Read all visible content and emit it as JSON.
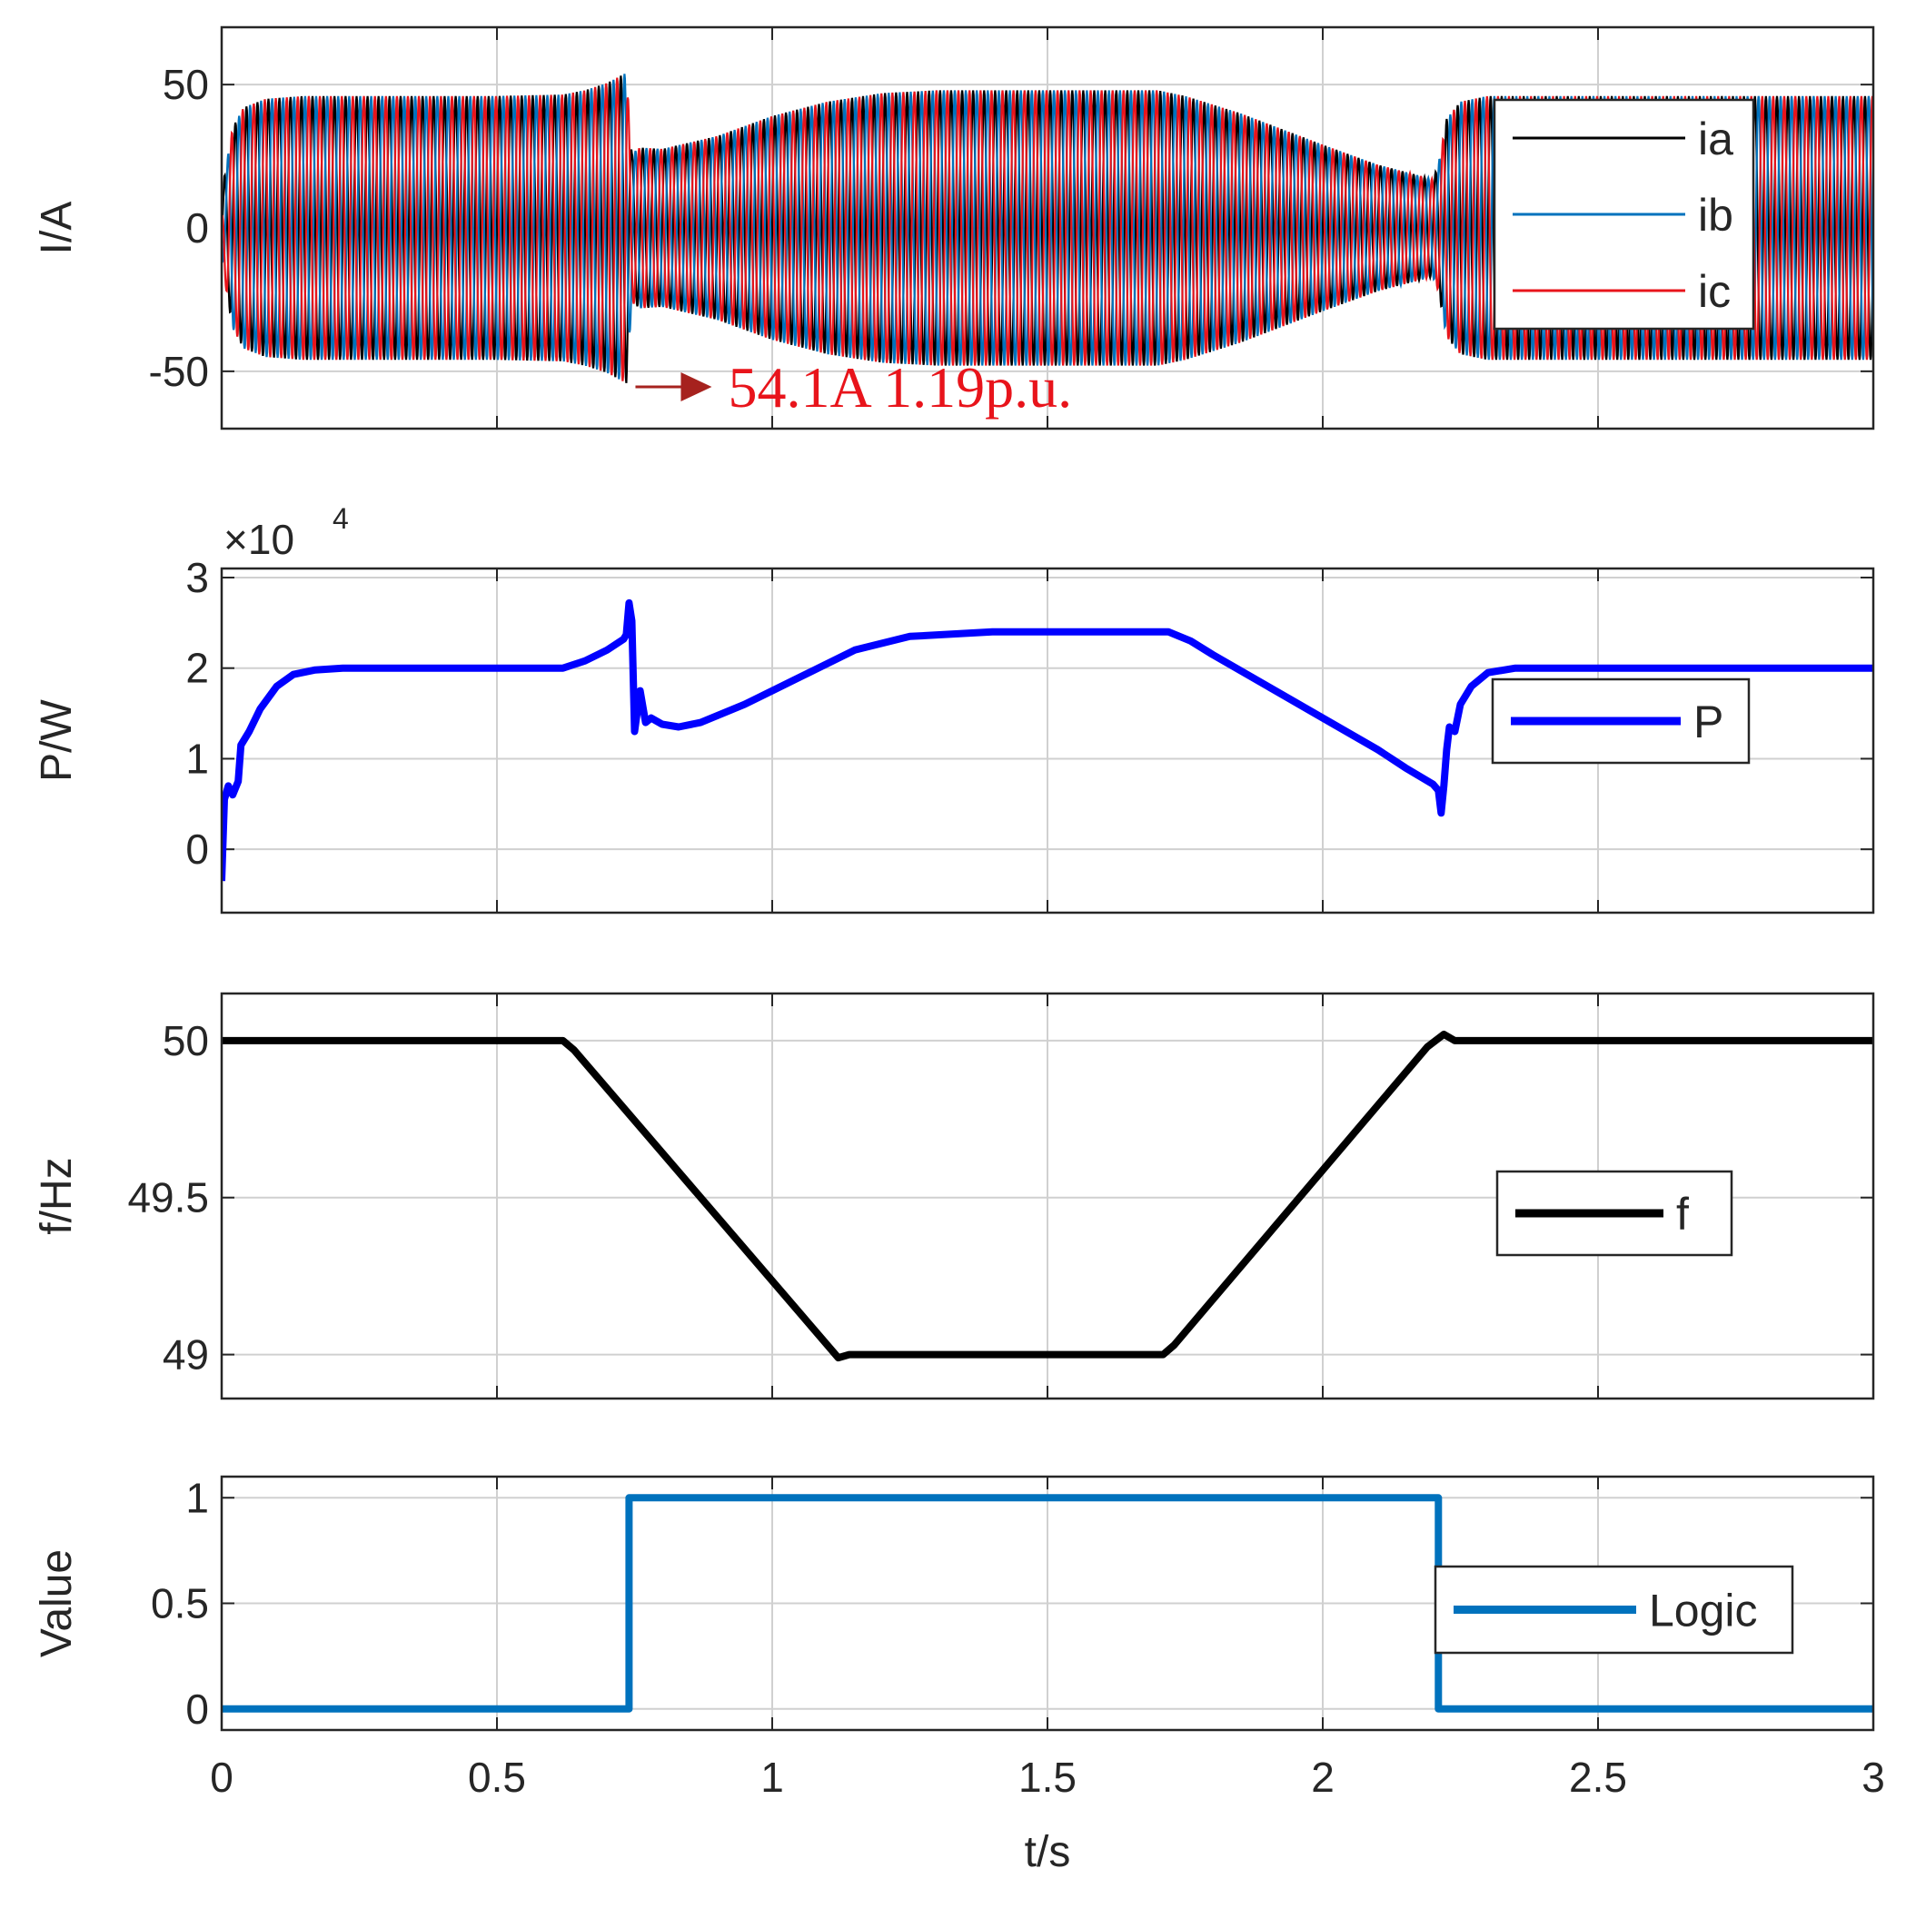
{
  "chart_data": [
    {
      "type": "line",
      "ylabel": "I/A",
      "ylim": [
        -70,
        70
      ],
      "yticks": [
        -50,
        0,
        50
      ],
      "xlim": [
        0,
        3
      ],
      "grid": true,
      "legend_position": "top-right",
      "envelope_note": "three-phase 50 Hz currents; each series oscillates within ±amplitude",
      "amplitude": {
        "t": [
          0,
          0.005,
          0.02,
          0.04,
          0.08,
          0.15,
          0.3,
          0.5,
          0.62,
          0.66,
          0.7,
          0.735,
          0.745,
          0.76,
          0.8,
          0.9,
          1.0,
          1.1,
          1.2,
          1.3,
          1.5,
          1.7,
          1.75,
          1.85,
          2.0,
          2.1,
          2.2,
          2.21,
          2.225,
          2.25,
          2.3,
          2.4,
          2.6,
          3.0
        ],
        "value": [
          3,
          18,
          35,
          42,
          45,
          46,
          46,
          46,
          46.5,
          48,
          50.5,
          54.1,
          26,
          28,
          27.5,
          32,
          39,
          44,
          47,
          48,
          48,
          48,
          46,
          40,
          29,
          22,
          17,
          22,
          38,
          44,
          46,
          46,
          46,
          46
        ]
      },
      "series": [
        {
          "name": "ia",
          "color": "#000000"
        },
        {
          "name": "ib",
          "color": "#0072bd"
        },
        {
          "name": "ic",
          "color": "#e8141b"
        }
      ],
      "annotation": {
        "text": "54.1A 1.19p.u.",
        "x": 0.745,
        "y": -54.1,
        "color": "#e8141b",
        "arrow_color": "#a6221e"
      }
    },
    {
      "type": "line",
      "ylabel": "P/W",
      "exponent_label": "×10",
      "exponent_power": "4",
      "ylim": [
        -0.7,
        3.1
      ],
      "yticks": [
        0,
        1,
        2,
        3
      ],
      "xlim": [
        0,
        3
      ],
      "grid": true,
      "legend_position": "right",
      "series": [
        {
          "name": "P",
          "color": "#0000ff",
          "x": [
            0,
            0.005,
            0.012,
            0.02,
            0.03,
            0.035,
            0.05,
            0.07,
            0.1,
            0.13,
            0.17,
            0.22,
            0.3,
            0.5,
            0.62,
            0.66,
            0.7,
            0.73,
            0.735,
            0.74,
            0.745,
            0.75,
            0.76,
            0.77,
            0.78,
            0.8,
            0.83,
            0.87,
            0.95,
            1.05,
            1.15,
            1.25,
            1.4,
            1.6,
            1.72,
            1.76,
            1.8,
            1.9,
            2.0,
            2.1,
            2.15,
            2.2,
            2.21,
            2.215,
            2.22,
            2.225,
            2.23,
            2.24,
            2.25,
            2.27,
            2.3,
            2.35,
            2.5,
            3.0
          ],
          "y": [
            -0.35,
            0.55,
            0.7,
            0.6,
            0.75,
            1.15,
            1.3,
            1.55,
            1.8,
            1.93,
            1.98,
            2.0,
            2.0,
            2.0,
            2.0,
            2.08,
            2.2,
            2.32,
            2.37,
            2.72,
            2.52,
            1.3,
            1.75,
            1.4,
            1.45,
            1.38,
            1.35,
            1.4,
            1.6,
            1.9,
            2.2,
            2.35,
            2.4,
            2.4,
            2.4,
            2.3,
            2.15,
            1.8,
            1.45,
            1.1,
            0.9,
            0.72,
            0.65,
            0.4,
            0.7,
            1.1,
            1.35,
            1.3,
            1.6,
            1.8,
            1.95,
            2.0,
            2.0,
            2.0
          ]
        }
      ]
    },
    {
      "type": "line",
      "ylabel": "f/Hz",
      "ylim": [
        48.86,
        50.15
      ],
      "yticks": [
        49,
        49.5,
        50
      ],
      "xlim": [
        0,
        3
      ],
      "grid": true,
      "legend_position": "right",
      "series": [
        {
          "name": "f",
          "color": "#000000",
          "x": [
            0,
            0.62,
            0.64,
            1.12,
            1.14,
            1.2,
            1.71,
            1.73,
            2.19,
            2.22,
            2.24,
            2.3,
            3.0
          ],
          "y": [
            50,
            50,
            49.97,
            48.99,
            49.0,
            49.0,
            49.0,
            49.03,
            49.98,
            50.02,
            50.0,
            50.0,
            50.0
          ]
        }
      ]
    },
    {
      "type": "line",
      "ylabel": "Value",
      "xlabel": "t/s",
      "ylim": [
        -0.1,
        1.1
      ],
      "yticks": [
        0,
        0.5,
        1
      ],
      "xlim": [
        0,
        3
      ],
      "xticks": [
        0,
        0.5,
        1,
        1.5,
        2,
        2.5,
        3
      ],
      "xtick_labels": [
        "0",
        "0.5",
        "1",
        "1.5",
        "2",
        "2.5",
        "3"
      ],
      "grid": true,
      "legend_position": "right",
      "series": [
        {
          "name": "Logic",
          "color": "#0072bd",
          "x": [
            0,
            0.74,
            0.74,
            2.21,
            2.21,
            3.0
          ],
          "y": [
            0,
            0,
            1,
            1,
            0,
            0
          ]
        }
      ]
    }
  ]
}
